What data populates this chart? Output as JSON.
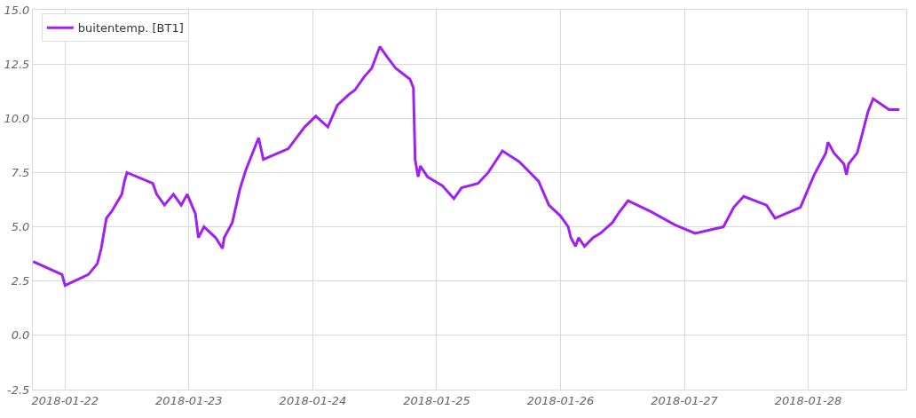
{
  "chart_data": {
    "type": "line",
    "legend": "top left",
    "grid": true,
    "marker": "none",
    "line_style": "solid",
    "xlim": [
      "2018-01-21T17:45",
      "2018-01-28T19:00"
    ],
    "xticks": [
      "2018-01-22",
      "2018-01-23",
      "2018-01-24",
      "2018-01-25",
      "2018-01-26",
      "2018-01-27",
      "2018-01-28"
    ],
    "ylim": [
      -2.5,
      15
    ],
    "yticks": [
      {
        "value": -2.5,
        "label": "-2.5"
      },
      {
        "value": 0,
        "label": "0.0"
      },
      {
        "value": 2.5,
        "label": "2.5"
      },
      {
        "value": 5,
        "label": "5.0"
      },
      {
        "value": 7.5,
        "label": "7.5"
      },
      {
        "value": 10,
        "label": "10.0"
      },
      {
        "value": 12.5,
        "label": "12.5"
      },
      {
        "value": 15,
        "label": "15.0"
      }
    ],
    "x": [
      "2018-01-21T17:48",
      "2018-01-21T23:24",
      "2018-01-22T00:00",
      "2018-01-22T04:30",
      "2018-01-22T06:15",
      "2018-01-22T07:00",
      "2018-01-22T08:00",
      "2018-01-22T09:00",
      "2018-01-22T11:00",
      "2018-01-22T11:30",
      "2018-01-22T12:00",
      "2018-01-22T17:00",
      "2018-01-22T17:45",
      "2018-01-22T19:15",
      "2018-01-22T21:00",
      "2018-01-22T22:30",
      "2018-01-22T23:40",
      "2018-01-23T01:15",
      "2018-01-23T01:50",
      "2018-01-23T02:55",
      "2018-01-23T05:10",
      "2018-01-23T06:30",
      "2018-01-23T06:50",
      "2018-01-23T08:25",
      "2018-01-23T09:50",
      "2018-01-23T11:00",
      "2018-01-23T13:30",
      "2018-01-23T14:25",
      "2018-01-23T19:15",
      "2018-01-23T22:25",
      "2018-01-24T00:35",
      "2018-01-24T02:55",
      "2018-01-24T04:45",
      "2018-01-24T07:00",
      "2018-01-24T08:10",
      "2018-01-24T09:55",
      "2018-01-24T11:25",
      "2018-01-24T13:00",
      "2018-01-24T14:30",
      "2018-01-24T16:05",
      "2018-01-24T18:50",
      "2018-01-24T19:30",
      "2018-01-24T19:50",
      "2018-01-24T20:25",
      "2018-01-24T20:50",
      "2018-01-24T22:15",
      "2018-01-25T01:05",
      "2018-01-25T03:20",
      "2018-01-25T04:50",
      "2018-01-25T08:00",
      "2018-01-25T10:00",
      "2018-01-25T12:45",
      "2018-01-25T16:00",
      "2018-01-25T19:45",
      "2018-01-25T21:45",
      "2018-01-26T00:00",
      "2018-01-26T01:30",
      "2018-01-26T02:00",
      "2018-01-26T02:55",
      "2018-01-26T03:30",
      "2018-01-26T04:40",
      "2018-01-26T06:20",
      "2018-01-26T07:45",
      "2018-01-26T10:05",
      "2018-01-26T11:10",
      "2018-01-26T13:05",
      "2018-01-26T17:30",
      "2018-01-26T22:05",
      "2018-01-27T02:05",
      "2018-01-27T07:35",
      "2018-01-27T09:35",
      "2018-01-27T11:30",
      "2018-01-27T15:55",
      "2018-01-27T17:35",
      "2018-01-27T22:30",
      "2018-01-27T23:55",
      "2018-01-28T01:10",
      "2018-01-28T03:25",
      "2018-01-28T03:50",
      "2018-01-28T05:00",
      "2018-01-28T06:55",
      "2018-01-28T07:25",
      "2018-01-28T07:50",
      "2018-01-28T09:30",
      "2018-01-28T10:30",
      "2018-01-28T11:35",
      "2018-01-28T12:35",
      "2018-01-28T15:40",
      "2018-01-28T17:40"
    ],
    "series": [
      {
        "name": "buitentemp. [BT1]",
        "color": "#a020f0",
        "values": [
          3.4,
          2.8,
          2.3,
          2.8,
          3.3,
          4.0,
          5.4,
          5.7,
          6.5,
          7.1,
          7.5,
          7.0,
          6.5,
          6.0,
          6.5,
          6.0,
          6.5,
          5.6,
          4.5,
          5.0,
          4.5,
          4.0,
          4.5,
          5.2,
          6.7,
          7.6,
          9.1,
          8.1,
          8.6,
          9.6,
          10.1,
          9.6,
          10.6,
          11.1,
          11.3,
          11.9,
          12.3,
          13.3,
          12.8,
          12.3,
          11.8,
          11.4,
          8.1,
          7.3,
          7.8,
          7.3,
          6.9,
          6.3,
          6.8,
          7.0,
          7.5,
          8.5,
          8.0,
          7.1,
          6.0,
          5.5,
          5.0,
          4.5,
          4.1,
          4.5,
          4.1,
          4.5,
          4.7,
          5.2,
          5.6,
          6.2,
          5.7,
          5.1,
          4.7,
          5.0,
          5.9,
          6.4,
          6.0,
          5.4,
          5.9,
          6.7,
          7.4,
          8.4,
          8.9,
          8.4,
          7.9,
          7.4,
          7.9,
          8.4,
          9.3,
          10.3,
          10.9,
          10.4,
          10.4
        ]
      }
    ]
  }
}
